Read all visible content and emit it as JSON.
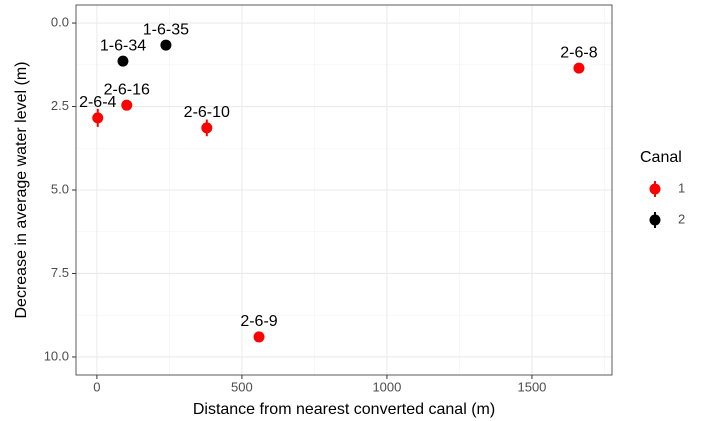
{
  "chart_data": {
    "type": "scatter",
    "x_label": "Distance from nearest converted canal (m)",
    "y_label": "Decrease in average water level (m)",
    "xlim": [
      -72,
      1776
    ],
    "xticks": [
      0,
      500,
      1000,
      1500
    ],
    "ylim": [
      -0.54,
      10.54
    ],
    "y_reversed": true,
    "yticks": [
      {
        "value": 0,
        "label": "0.0"
      },
      2.5,
      {
        "value": 5,
        "label": "5.0"
      },
      7.5,
      {
        "value": 10,
        "label": "10.0"
      }
    ],
    "grid": true,
    "legend_title": "Canal",
    "legend_position": "right",
    "series": [
      {
        "name": "1",
        "color": "#ff0000",
        "x": [
          3,
          103,
          379,
          559,
          1662
        ],
        "values": [
          2.84,
          2.46,
          3.14,
          9.4,
          1.35
        ],
        "errors": [
          0.27,
          0.1,
          0.25,
          0.1,
          0.1
        ],
        "point_labels": [
          "2-6-4",
          "2-6-16",
          "2-6-10",
          "2-6-9",
          "2-6-8"
        ]
      },
      {
        "name": "2",
        "color": "#000000",
        "x": [
          90,
          238
        ],
        "values": [
          1.14,
          0.66
        ],
        "errors": [
          0.1,
          0.1
        ],
        "point_labels": [
          "1-6-34",
          "1-6-35"
        ]
      }
    ]
  }
}
